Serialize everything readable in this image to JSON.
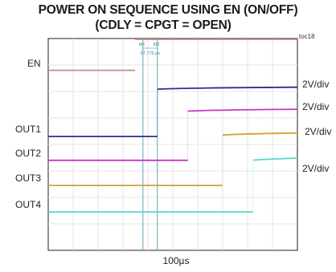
{
  "title_line1": "POWER ON SEQUENCE USING EN (ON/OFF)",
  "title_line2": "(CDLY = CPGT = OPEN)",
  "figure_id": "toc18",
  "chart_data": {
    "type": "line",
    "xlabel": "100µs",
    "x_divisions": 10,
    "y_divisions": 8,
    "grid": true,
    "markers": {
      "m1_label": "M1",
      "m2_label": "M2",
      "delta_label": "57.778 µs",
      "m1_x_div": 3.8,
      "m2_x_div": 4.38
    },
    "channel_labels": [
      {
        "text": "EN",
        "y_div": 1.2
      },
      {
        "text": "OUT1",
        "y_div": 3.7
      },
      {
        "text": "OUT2",
        "y_div": 4.6
      },
      {
        "text": "OUT3",
        "y_div": 5.55
      },
      {
        "text": "OUT4",
        "y_div": 6.55
      }
    ],
    "scale_labels": [
      {
        "text": "2V/div",
        "y_div": 1.75
      },
      {
        "text": "2V/div",
        "y_div": 2.6
      },
      {
        "text": "2V/div",
        "y_div": 3.55
      },
      {
        "text": "2V/div",
        "y_div": 4.95
      }
    ],
    "series": [
      {
        "name": "EN",
        "color": "#c98a8a",
        "low_y_div": 1.2,
        "high_y_div": 0.0,
        "step_x_div": 3.48,
        "curve": "flat"
      },
      {
        "name": "OUT1",
        "color": "#2e2f8e",
        "low_y_div": 3.7,
        "high_y_div": 1.87,
        "step_x_div": 4.38,
        "curve": "rise"
      },
      {
        "name": "OUT2",
        "color": "#c935c9",
        "low_y_div": 4.6,
        "high_y_div": 2.7,
        "step_x_div": 5.6,
        "curve": "rise"
      },
      {
        "name": "OUT3",
        "color": "#d4a232",
        "low_y_div": 5.55,
        "high_y_div": 3.6,
        "step_x_div": 7.0,
        "curve": "rise"
      },
      {
        "name": "OUT4",
        "color": "#52d9c9",
        "low_y_div": 6.55,
        "high_y_div": 4.55,
        "step_x_div": 8.22,
        "curve": "rise"
      }
    ]
  }
}
